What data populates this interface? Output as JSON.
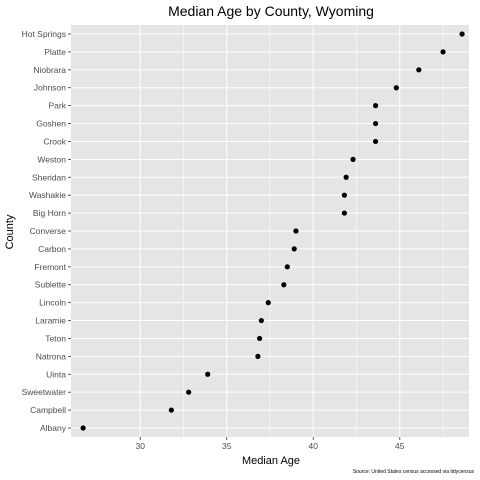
{
  "chart_data": {
    "type": "scatter",
    "title": "Median Age by County, Wyoming",
    "xlabel": "Median Age",
    "ylabel": "County",
    "caption": "Source: United States census accessed via tidycensus",
    "xlim": [
      26.0,
      49.0
    ],
    "xticks": [
      30,
      35,
      40,
      45
    ],
    "xtick_labels": [
      "30",
      "35",
      "40",
      "45"
    ],
    "grid": true,
    "panel_background": "#e5e5e5",
    "grid_color": "#ffffff",
    "point_color": "#000000",
    "points": [
      {
        "county": "Hot Springs",
        "value": 48.6
      },
      {
        "county": "Platte",
        "value": 47.5
      },
      {
        "county": "Niobrara",
        "value": 46.1
      },
      {
        "county": "Johnson",
        "value": 44.8
      },
      {
        "county": "Park",
        "value": 43.6
      },
      {
        "county": "Goshen",
        "value": 43.6
      },
      {
        "county": "Crook",
        "value": 43.6
      },
      {
        "county": "Weston",
        "value": 42.3
      },
      {
        "county": "Sheridan",
        "value": 41.9
      },
      {
        "county": "Washakie",
        "value": 41.8
      },
      {
        "county": "Big Horn",
        "value": 41.8
      },
      {
        "county": "Converse",
        "value": 39.0
      },
      {
        "county": "Carbon",
        "value": 38.9
      },
      {
        "county": "Fremont",
        "value": 38.5
      },
      {
        "county": "Sublette",
        "value": 38.3
      },
      {
        "county": "Lincoln",
        "value": 37.4
      },
      {
        "county": "Laramie",
        "value": 37.0
      },
      {
        "county": "Teton",
        "value": 36.9
      },
      {
        "county": "Natrona",
        "value": 36.8
      },
      {
        "county": "Uinta",
        "value": 33.9
      },
      {
        "county": "Sweetwater",
        "value": 32.8
      },
      {
        "county": "Campbell",
        "value": 31.8
      },
      {
        "county": "Albany",
        "value": 26.7
      }
    ]
  }
}
